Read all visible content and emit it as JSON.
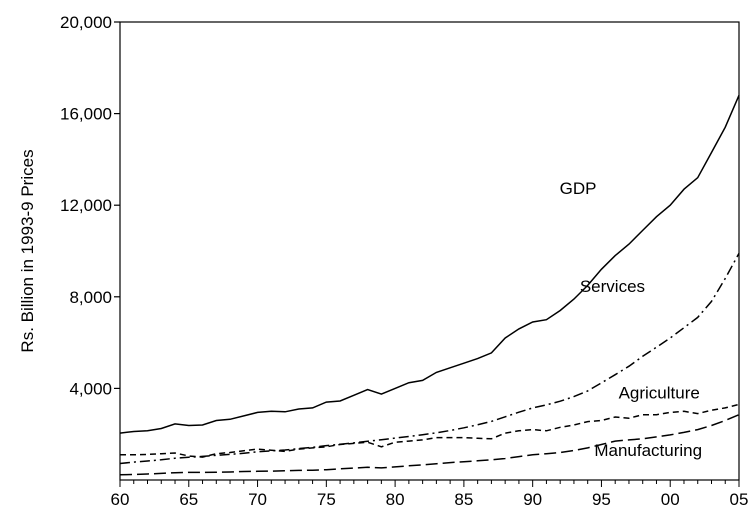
{
  "chart_data": {
    "type": "line",
    "title": "",
    "xlabel": "",
    "ylabel": "Rs. Billion in 1993-9 Prices",
    "xlim": [
      1960,
      2005
    ],
    "ylim": [
      0,
      20000
    ],
    "x_ticks": [
      1960,
      1965,
      1970,
      1975,
      1980,
      1985,
      1990,
      1995,
      2000,
      2005
    ],
    "x_tick_labels": [
      "60",
      "65",
      "70",
      "75",
      "80",
      "85",
      "90",
      "95",
      "00",
      "05"
    ],
    "y_ticks": [
      4000,
      8000,
      12000,
      16000,
      20000
    ],
    "y_tick_labels": [
      "4,000",
      "8,000",
      "12,000",
      "16,000",
      "20,000"
    ],
    "grid": false,
    "legend": "none (series labeled inline)",
    "x": [
      1960,
      1961,
      1962,
      1963,
      1964,
      1965,
      1966,
      1967,
      1968,
      1969,
      1970,
      1971,
      1972,
      1973,
      1974,
      1975,
      1976,
      1977,
      1978,
      1979,
      1980,
      1981,
      1982,
      1983,
      1984,
      1985,
      1986,
      1987,
      1988,
      1989,
      1990,
      1991,
      1992,
      1993,
      1994,
      1995,
      1996,
      1997,
      1998,
      1999,
      2000,
      2001,
      2002,
      2003,
      2004,
      2005
    ],
    "series": [
      {
        "name": "GDP",
        "style": "solid",
        "values": [
          2050,
          2120,
          2150,
          2250,
          2450,
          2380,
          2400,
          2600,
          2650,
          2800,
          2950,
          3000,
          2980,
          3100,
          3150,
          3400,
          3450,
          3700,
          3950,
          3750,
          4000,
          4250,
          4350,
          4700,
          4900,
          5100,
          5300,
          5550,
          6200,
          6600,
          6900,
          7000,
          7400,
          7900,
          8500,
          9200,
          9800,
          10300,
          10900,
          11500,
          12000,
          12700,
          13200,
          14300,
          15400,
          16800
        ]
      },
      {
        "name": "Services",
        "style": "dash-dot",
        "values": [
          720,
          780,
          830,
          880,
          950,
          990,
          1030,
          1080,
          1120,
          1170,
          1230,
          1270,
          1310,
          1370,
          1430,
          1500,
          1560,
          1620,
          1690,
          1760,
          1830,
          1900,
          1980,
          2060,
          2160,
          2280,
          2410,
          2560,
          2760,
          2960,
          3150,
          3280,
          3440,
          3640,
          3890,
          4240,
          4600,
          4970,
          5400,
          5800,
          6200,
          6650,
          7100,
          7800,
          8800,
          9900
        ]
      },
      {
        "name": "Agriculture",
        "style": "dashed",
        "values": [
          1100,
          1100,
          1120,
          1150,
          1180,
          1050,
          1000,
          1150,
          1200,
          1280,
          1350,
          1300,
          1250,
          1350,
          1400,
          1450,
          1550,
          1600,
          1650,
          1450,
          1650,
          1700,
          1750,
          1850,
          1850,
          1850,
          1820,
          1800,
          2050,
          2150,
          2200,
          2150,
          2300,
          2400,
          2550,
          2600,
          2750,
          2700,
          2850,
          2850,
          2950,
          3000,
          2900,
          3050,
          3150,
          3300
        ]
      },
      {
        "name": "Manufacturing",
        "style": "long-dash",
        "values": [
          230,
          240,
          260,
          290,
          320,
          330,
          330,
          340,
          350,
          370,
          380,
          390,
          400,
          420,
          430,
          450,
          490,
          520,
          560,
          530,
          570,
          620,
          660,
          710,
          760,
          800,
          840,
          880,
          940,
          1020,
          1100,
          1150,
          1200,
          1290,
          1400,
          1550,
          1700,
          1750,
          1800,
          1880,
          1970,
          2080,
          2200,
          2380,
          2600,
          2850
        ]
      }
    ]
  }
}
